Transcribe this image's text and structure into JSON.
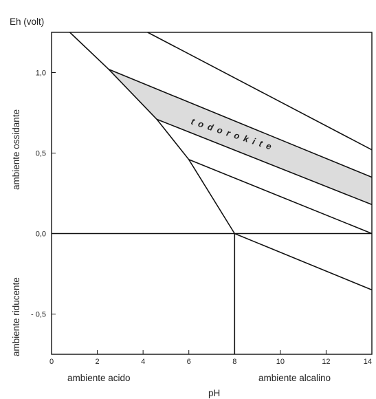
{
  "figure": {
    "y_axis_title": "Eh (volt)",
    "x_axis_title": "pH",
    "y_label_upper": "ambiente ossidante",
    "y_label_lower": "ambiente riducente",
    "x_label_left": "ambiente acido",
    "x_label_right": "ambiente alcalino",
    "mineral_label": "todorokite",
    "x_ticks": [
      "0",
      "2",
      "4",
      "6",
      "8",
      "10",
      "12",
      "14"
    ],
    "y_ticks": [
      "1,0",
      "0,5",
      "0,0",
      "- 0,5"
    ],
    "colors": {
      "line": "#111111",
      "band_fill": "#dcdcdc",
      "background": "#ffffff"
    }
  },
  "chart_data": {
    "type": "line",
    "xlim": [
      0,
      14
    ],
    "ylim": [
      -0.75,
      1.25
    ],
    "x_tick_values": [
      0,
      2,
      4,
      6,
      8,
      10,
      12,
      14
    ],
    "y_tick_values": [
      1.0,
      0.5,
      0.0,
      -0.5
    ],
    "series": [
      {
        "values": [
          [
            0.8,
            1.25
          ],
          [
            2.5,
            1.02
          ],
          [
            4.6,
            0.71
          ],
          [
            6.0,
            0.46
          ],
          [
            8.0,
            0.0
          ]
        ]
      },
      {
        "values": [
          [
            4.2,
            1.25
          ],
          [
            14,
            0.52
          ]
        ]
      },
      {
        "values": [
          [
            2.5,
            1.02
          ],
          [
            14,
            0.35
          ]
        ]
      },
      {
        "values": [
          [
            4.6,
            0.71
          ],
          [
            14,
            0.18
          ]
        ]
      },
      {
        "values": [
          [
            6.0,
            0.46
          ],
          [
            14,
            0.0
          ]
        ]
      },
      {
        "values": [
          [
            8.0,
            0.0
          ],
          [
            14,
            -0.35
          ]
        ]
      },
      {
        "values": [
          [
            8.0,
            0.0
          ],
          [
            8.0,
            -0.75
          ]
        ]
      },
      {
        "values": [
          [
            0,
            0.0
          ],
          [
            14,
            0.0
          ]
        ]
      }
    ],
    "shaded_region": {
      "label": "todorokite",
      "polygon": [
        [
          2.5,
          1.02
        ],
        [
          14,
          0.35
        ],
        [
          14,
          0.18
        ],
        [
          4.6,
          0.71
        ]
      ]
    }
  }
}
